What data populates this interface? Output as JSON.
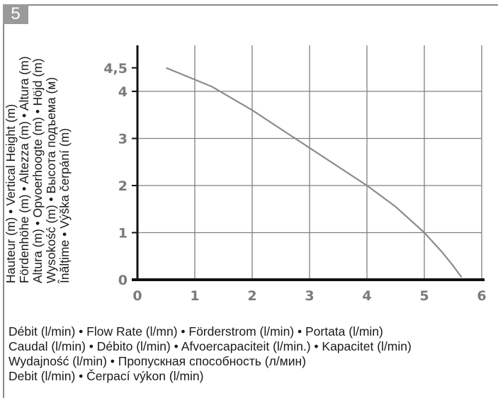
{
  "figure_number": "5",
  "y_axis_label_lines": [
    "Hauteur (m) • Vertical Height (m)",
    "Fördenhöhe (m) • Altezza (m) • Altura (m)",
    "Altura (m) • Opvoerhoogte (m) • Höjd (m)",
    "Wysokość (m) • Высота подъема  (м)",
    "Înălțime • Výška čerpání (m)"
  ],
  "x_axis_label_lines": [
    "Débit (l/min) • Flow Rate (l/mn) • Förderstrom (l/min) • Portata (l/min)",
    "Caudal (l/min) • Débito (l/min) • Afvoercapaciteit (l/min.) • Kapacitet (l/min)",
    "Wydajność (l/min) • Пропускная способность (л/мин)",
    "Debit (l/min) • Čerpací výkon (l/min)"
  ],
  "colors": {
    "frame": "#8a8a8a",
    "badge": "#9a9a9a",
    "grid": "#808080",
    "axis": "#111111",
    "curve": "#8c8c8c",
    "tick_text": "#7a7a7a"
  },
  "chart_data": {
    "type": "line",
    "title": "",
    "xlabel": "Débit (l/min) • Flow Rate (l/mn) • Förderstrom (l/min) • Portata (l/min)",
    "ylabel": "Hauteur (m) • Vertical Height (m)",
    "xlim": [
      0,
      6
    ],
    "ylim": [
      0,
      4.5
    ],
    "x_ticks": [
      "0",
      "1",
      "2",
      "3",
      "4",
      "5",
      "6"
    ],
    "y_ticks": [
      "0",
      "1",
      "2",
      "3",
      "4",
      "4,5"
    ],
    "y_tick_values": [
      0,
      1,
      2,
      3,
      4,
      4.5
    ],
    "grid": true,
    "series": [
      {
        "x": [
          0.5,
          0.9,
          1.3,
          2.0,
          3.0,
          4.0,
          4.5,
          5.0,
          5.3,
          5.5,
          5.65
        ],
        "y": [
          4.5,
          4.3,
          4.1,
          3.6,
          2.8,
          2.0,
          1.55,
          1.0,
          0.6,
          0.3,
          0.05
        ]
      }
    ]
  }
}
